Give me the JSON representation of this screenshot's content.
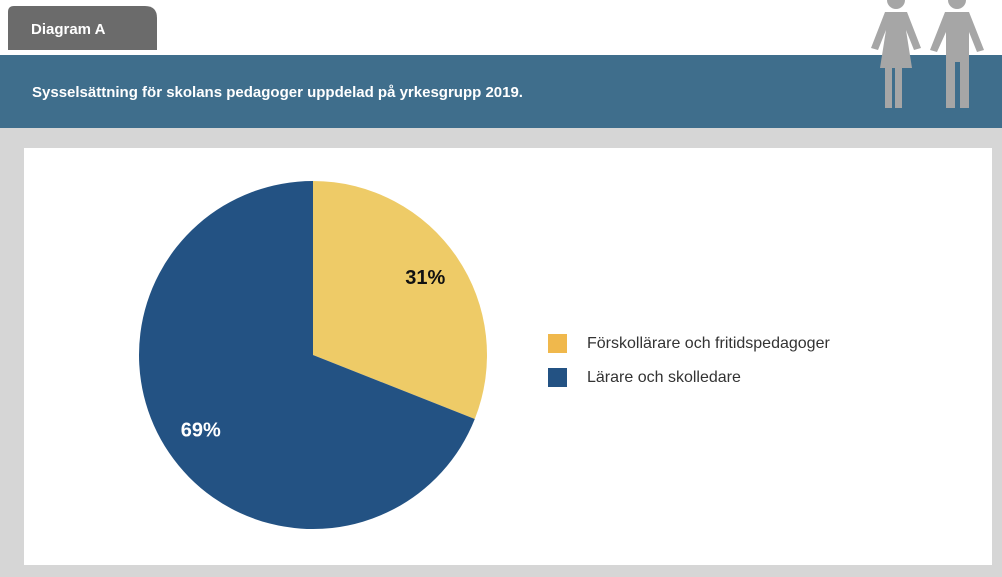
{
  "tab": "Diagram A",
  "chart_data": {
    "type": "pie",
    "title": "Sysselsättning för skolans pedagoger uppdelad på yrkesgrupp 2019.",
    "categories": [
      "Förskollärare och fritidspedagoger",
      "Lärare och skolledare"
    ],
    "values": [
      31,
      69
    ],
    "value_labels": [
      "31%",
      "69%"
    ],
    "colors": [
      "#eecb67",
      "#235283"
    ],
    "legend_colors": [
      "#f0b84c",
      "#235283"
    ],
    "label_colors": [
      "#111111",
      "#ffffff"
    ],
    "legend": "right"
  }
}
